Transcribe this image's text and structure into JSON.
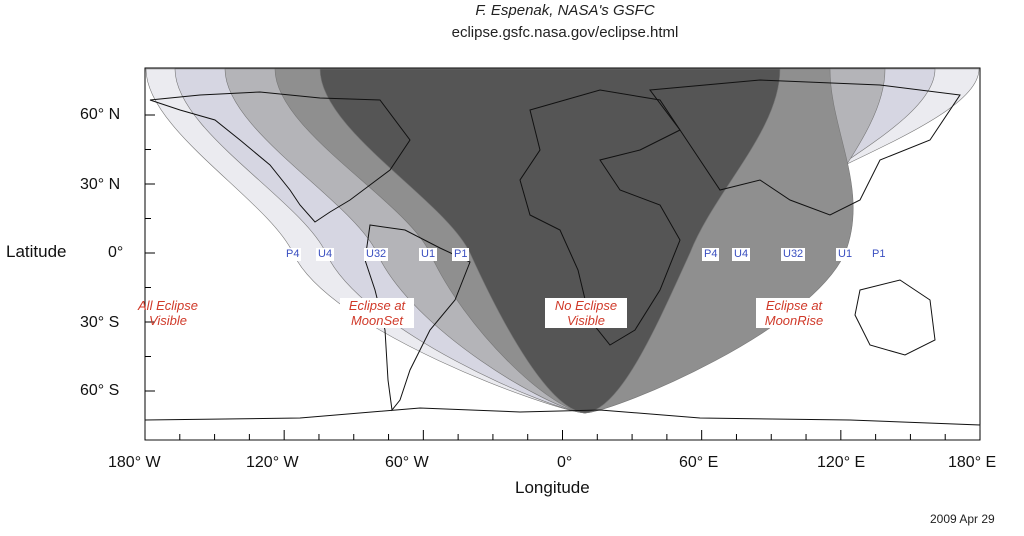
{
  "credit": {
    "author": "F. Espenak, NASA's GSFC",
    "url": "eclipse.gsfc.nasa.gov/eclipse.html"
  },
  "axes": {
    "ylabel": "Latitude",
    "xlabel": "Longitude",
    "yticks": [
      "60° N",
      "30° N",
      "0°",
      "30° S",
      "60° S"
    ],
    "xticks": [
      "180° W",
      "120° W",
      "60° W",
      "0°",
      "60° E",
      "120° E",
      "180° E"
    ]
  },
  "contacts_west": [
    "P4",
    "U4",
    "U32",
    "U1",
    "P1"
  ],
  "contacts_east": [
    "P4",
    "U4",
    "U32",
    "U1",
    "P1"
  ],
  "regions": {
    "all": [
      "All Eclipse",
      "Visible"
    ],
    "moonset": [
      "Eclipse at",
      "MoonSet"
    ],
    "none": [
      "No Eclipse",
      "Visible"
    ],
    "moonrise": [
      "Eclipse at",
      "MoonRise"
    ]
  },
  "date": "2009 Apr 29",
  "colors": {
    "no_eclipse": "#555555",
    "p1_u1": "#8f8f8f",
    "u1_u32": "#b4b4b8",
    "u32_u4": "#d6d6e2",
    "u4_p4": "#ebebf0",
    "visible": "#ffffff",
    "label_text": "#d03a2a",
    "contact_text": "#3a4fc0"
  }
}
